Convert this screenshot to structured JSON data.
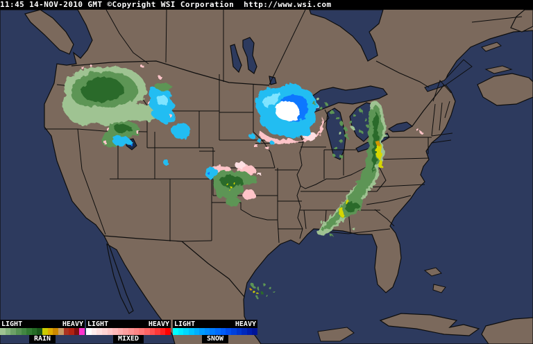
{
  "title_bar": {
    "timestamp": "11:45 14-NOV-2010 GMT",
    "copyright": "©Copyright WSI Corporation",
    "url": "http://www.wsi.com"
  },
  "legend": {
    "panels": [
      {
        "id": "rain",
        "label": "RAIN",
        "scale_left": "LIGHT",
        "scale_right": "HEAVY",
        "colors": [
          "#9fc392",
          "#85b37d",
          "#6da167",
          "#579253",
          "#428742",
          "#327a32",
          "#256b25",
          "#1a581a",
          "#cccc00",
          "#ddaa00",
          "#cc8800",
          "#c79a66",
          "#aa3322",
          "#b22211",
          "#7d1010",
          "#ff33cc"
        ]
      },
      {
        "id": "mixed",
        "label": "MIXED",
        "scale_left": "LIGHT",
        "scale_right": "HEAVY",
        "colors": [
          "#ffffff",
          "#ffeded",
          "#ffe0e0",
          "#ffd4d4",
          "#ffc7c7",
          "#ffbaba",
          "#ffadad",
          "#ffa0a0",
          "#ff9393",
          "#ff8686",
          "#ff7878",
          "#ff6666",
          "#ff5050",
          "#ff3838",
          "#ff2020",
          "#ff0000"
        ]
      },
      {
        "id": "snow",
        "label": "SNOW",
        "scale_left": "LIGHT",
        "scale_right": "HEAVY",
        "colors": [
          "#00ffff",
          "#00ecff",
          "#00d8ff",
          "#00c4ff",
          "#00b0ff",
          "#009cff",
          "#008cff",
          "#007cff",
          "#006cff",
          "#005cf8",
          "#004cec",
          "#0040dc",
          "#0034cc",
          "#0028bc",
          "#001cac",
          "#001498"
        ]
      }
    ]
  },
  "map": {
    "palette": {
      "land": "#7b695c",
      "water": "#2d3a5e",
      "border": "#0d0d0d",
      "lake-dark": "#1c2946",
      "rain-light": "#9fc392",
      "rain-mid": "#5d9554",
      "rain-dark": "#2c6b2c",
      "rain-darker": "#1a521a",
      "rain-yellow": "#d6d600",
      "rain-orange": "#d49600",
      "mix-pink": "#ffc4c8",
      "mix-pink-light": "#ffdfe2",
      "snow-cyan-light": "#7fe4ff",
      "snow-cyan": "#22bdf2",
      "snow-blue": "#1177ff",
      "snow-deep": "#0033cc",
      "snow-white": "#ffffff"
    },
    "precipitation": [
      {
        "region": "pacific-northwest",
        "type": "rain",
        "intensity": "light-moderate"
      },
      {
        "region": "cascades-oregon",
        "type": "rain-snow-mix",
        "intensity": "light"
      },
      {
        "region": "northern-rockies-montana",
        "type": "snow",
        "intensity": "light"
      },
      {
        "region": "idaho-utah-great-basin",
        "type": "rain-snow-mix",
        "intensity": "light"
      },
      {
        "region": "southwest-wyoming",
        "type": "snow",
        "intensity": "light"
      },
      {
        "region": "minnesota-wisconsin",
        "type": "snow",
        "intensity": "heavy"
      },
      {
        "region": "minnesota-wisconsin-fringe",
        "type": "mixed",
        "intensity": "light"
      },
      {
        "region": "iowa",
        "type": "snow-mixed",
        "intensity": "light"
      },
      {
        "region": "michigan-great-lakes",
        "type": "rain",
        "intensity": "light"
      },
      {
        "region": "ohio-valley-appalachians",
        "type": "rain",
        "intensity": "moderate-heavy"
      },
      {
        "region": "tennessee-alabama",
        "type": "rain",
        "intensity": "moderate"
      },
      {
        "region": "kansas-central-plains",
        "type": "rain",
        "intensity": "moderate"
      },
      {
        "region": "kansas-fringe",
        "type": "mixed-snow",
        "intensity": "light"
      },
      {
        "region": "western-new-york",
        "type": "mixed",
        "intensity": "light"
      },
      {
        "region": "gulf-of-mexico-texas-coast",
        "type": "rain",
        "intensity": "moderate"
      }
    ]
  }
}
